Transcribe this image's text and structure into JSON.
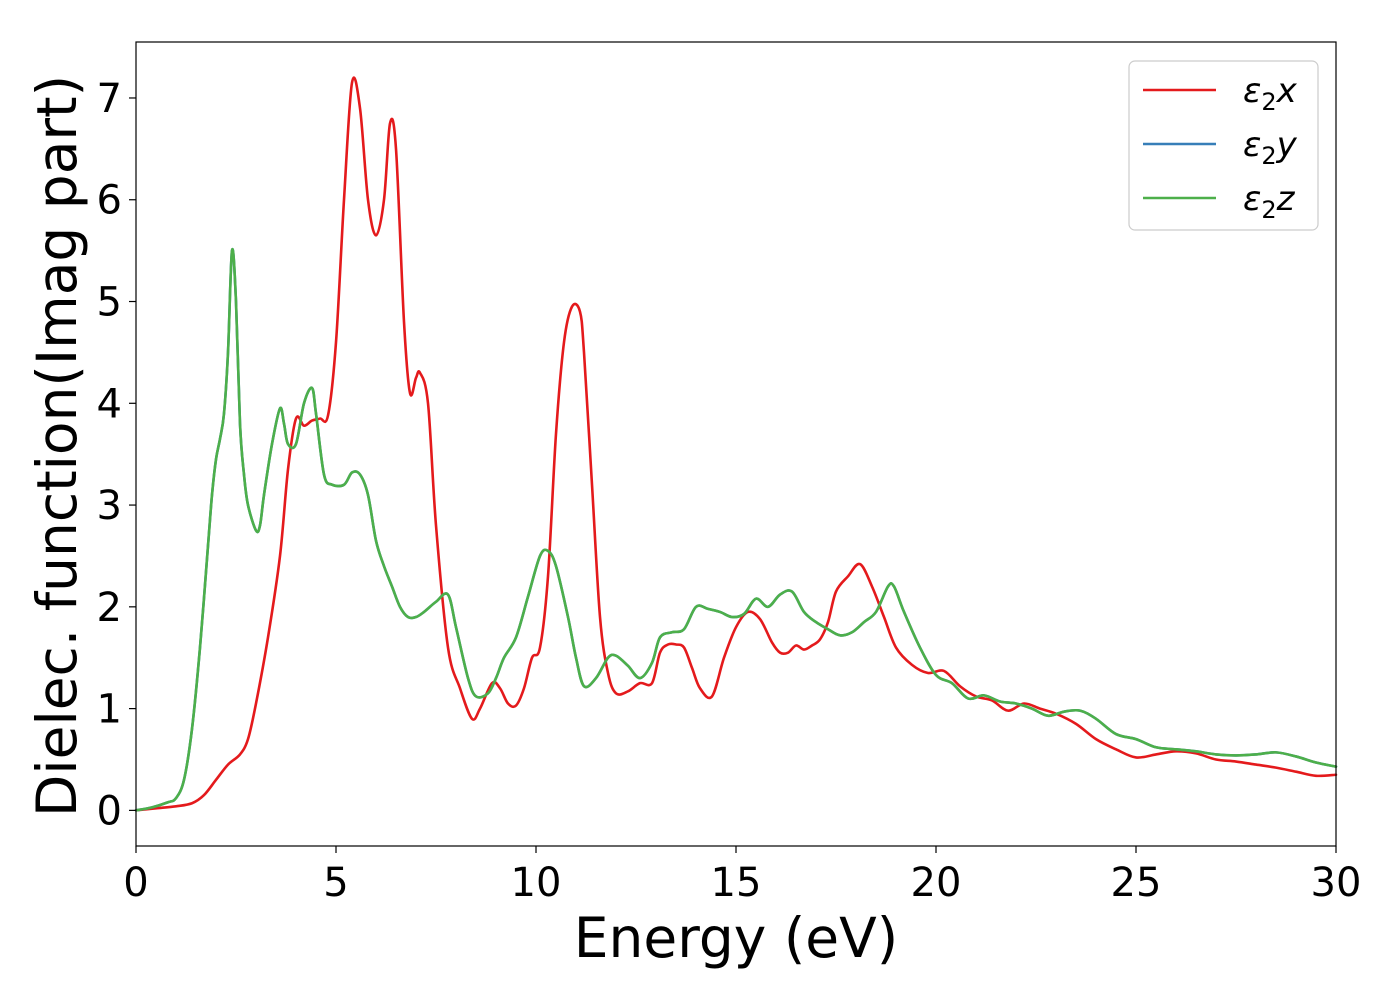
{
  "chart_data": {
    "type": "line",
    "title": "",
    "xlabel": "Energy (eV)",
    "ylabel": "Dielec. function(Imag part)",
    "xlim": [
      0,
      30
    ],
    "ylim": [
      -0.35,
      7.55
    ],
    "xticks": [
      0,
      5,
      10,
      15,
      20,
      25,
      30
    ],
    "yticks": [
      0,
      1,
      2,
      3,
      4,
      5,
      6,
      7
    ],
    "grid": false,
    "legend_position": "top-right",
    "series": [
      {
        "name": "ε2x",
        "symbol": "ε",
        "subscript": "2",
        "suffix": "x",
        "color": "#e41a1c",
        "x": [
          0,
          0.5,
          1.0,
          1.4,
          1.7,
          2.0,
          2.3,
          2.6,
          2.8,
          3.0,
          3.3,
          3.6,
          3.8,
          4.0,
          4.2,
          4.4,
          4.6,
          4.8,
          5.0,
          5.2,
          5.4,
          5.6,
          5.8,
          6.0,
          6.2,
          6.35,
          6.5,
          6.7,
          6.85,
          7.0,
          7.1,
          7.3,
          7.5,
          7.8,
          8.1,
          8.4,
          8.6,
          8.9,
          9.1,
          9.3,
          9.5,
          9.7,
          9.9,
          10.1,
          10.3,
          10.5,
          10.7,
          10.9,
          11.1,
          11.2,
          11.4,
          11.6,
          11.8,
          12.0,
          12.3,
          12.6,
          12.9,
          13.1,
          13.3,
          13.5,
          13.7,
          13.9,
          14.1,
          14.4,
          14.7,
          15.0,
          15.3,
          15.6,
          15.9,
          16.1,
          16.3,
          16.5,
          16.7,
          16.9,
          17.1,
          17.3,
          17.5,
          17.8,
          18.1,
          18.4,
          18.7,
          19.0,
          19.4,
          19.8,
          20.2,
          20.6,
          21.0,
          21.4,
          21.8,
          22.2,
          22.6,
          23.0,
          23.5,
          24.0,
          24.5,
          25.0,
          25.5,
          26.0,
          26.5,
          27.0,
          27.5,
          28.0,
          28.5,
          29.0,
          29.5,
          30.0
        ],
        "values": [
          0.0,
          0.02,
          0.04,
          0.07,
          0.15,
          0.3,
          0.45,
          0.55,
          0.7,
          1.05,
          1.7,
          2.5,
          3.35,
          3.85,
          3.78,
          3.83,
          3.85,
          3.88,
          4.6,
          6.0,
          7.15,
          6.9,
          6.0,
          5.65,
          6.0,
          6.75,
          6.5,
          4.8,
          4.1,
          4.25,
          4.3,
          4.0,
          2.8,
          1.6,
          1.2,
          0.9,
          1.0,
          1.25,
          1.2,
          1.05,
          1.03,
          1.2,
          1.5,
          1.6,
          2.3,
          3.7,
          4.6,
          4.95,
          4.9,
          4.5,
          3.2,
          1.9,
          1.35,
          1.15,
          1.17,
          1.25,
          1.25,
          1.55,
          1.63,
          1.63,
          1.6,
          1.4,
          1.2,
          1.12,
          1.5,
          1.8,
          1.95,
          1.88,
          1.65,
          1.55,
          1.55,
          1.62,
          1.58,
          1.62,
          1.68,
          1.85,
          2.15,
          2.3,
          2.42,
          2.2,
          1.9,
          1.6,
          1.43,
          1.35,
          1.37,
          1.22,
          1.12,
          1.08,
          0.98,
          1.05,
          1.0,
          0.95,
          0.85,
          0.7,
          0.6,
          0.52,
          0.55,
          0.58,
          0.56,
          0.5,
          0.48,
          0.45,
          0.42,
          0.38,
          0.34,
          0.35
        ]
      },
      {
        "name": "ε2y",
        "symbol": "ε",
        "subscript": "2",
        "suffix": "y",
        "color": "#377eb8",
        "same_as_series": 2
      },
      {
        "name": "ε2z",
        "symbol": "ε",
        "subscript": "2",
        "suffix": "z",
        "color": "#4daf4a",
        "x": [
          0,
          0.4,
          0.8,
          1.0,
          1.2,
          1.4,
          1.6,
          1.8,
          1.9,
          2.0,
          2.1,
          2.2,
          2.3,
          2.4,
          2.5,
          2.6,
          2.7,
          2.8,
          3.0,
          3.1,
          3.2,
          3.4,
          3.6,
          3.7,
          3.8,
          4.0,
          4.2,
          4.4,
          4.5,
          4.7,
          4.9,
          5.2,
          5.4,
          5.6,
          5.8,
          6.0,
          6.2,
          6.4,
          6.6,
          6.8,
          7.0,
          7.2,
          7.5,
          7.8,
          8.0,
          8.3,
          8.5,
          8.8,
          9.0,
          9.2,
          9.5,
          9.8,
          10.1,
          10.3,
          10.5,
          10.8,
          11.0,
          11.2,
          11.5,
          11.8,
          12.0,
          12.3,
          12.6,
          12.9,
          13.1,
          13.4,
          13.7,
          14.0,
          14.3,
          14.6,
          14.9,
          15.2,
          15.5,
          15.8,
          16.1,
          16.4,
          16.7,
          17.0,
          17.3,
          17.6,
          17.9,
          18.2,
          18.5,
          18.8,
          18.95,
          19.2,
          19.6,
          20.0,
          20.4,
          20.8,
          21.2,
          21.6,
          22.0,
          22.4,
          22.8,
          23.2,
          23.6,
          24.0,
          24.5,
          25.0,
          25.5,
          26.0,
          26.5,
          27.0,
          27.5,
          28.0,
          28.5,
          29.0,
          29.5,
          30.0
        ],
        "values": [
          0.0,
          0.03,
          0.08,
          0.12,
          0.3,
          0.8,
          1.6,
          2.6,
          3.1,
          3.45,
          3.65,
          3.9,
          4.5,
          5.5,
          5.0,
          3.8,
          3.3,
          3.0,
          2.75,
          2.8,
          3.1,
          3.6,
          3.95,
          3.8,
          3.6,
          3.6,
          4.0,
          4.15,
          3.9,
          3.3,
          3.2,
          3.2,
          3.32,
          3.3,
          3.1,
          2.65,
          2.4,
          2.2,
          2.0,
          1.9,
          1.9,
          1.95,
          2.05,
          2.12,
          1.8,
          1.3,
          1.12,
          1.15,
          1.3,
          1.5,
          1.7,
          2.1,
          2.5,
          2.55,
          2.4,
          1.9,
          1.5,
          1.22,
          1.3,
          1.5,
          1.52,
          1.42,
          1.3,
          1.45,
          1.7,
          1.75,
          1.78,
          2.0,
          1.98,
          1.95,
          1.9,
          1.93,
          2.08,
          2.0,
          2.12,
          2.15,
          1.95,
          1.85,
          1.78,
          1.72,
          1.75,
          1.85,
          1.95,
          2.2,
          2.2,
          1.95,
          1.6,
          1.33,
          1.25,
          1.1,
          1.13,
          1.07,
          1.05,
          1.0,
          0.93,
          0.97,
          0.98,
          0.9,
          0.75,
          0.7,
          0.62,
          0.6,
          0.58,
          0.55,
          0.54,
          0.55,
          0.57,
          0.53,
          0.47,
          0.43
        ]
      }
    ]
  }
}
